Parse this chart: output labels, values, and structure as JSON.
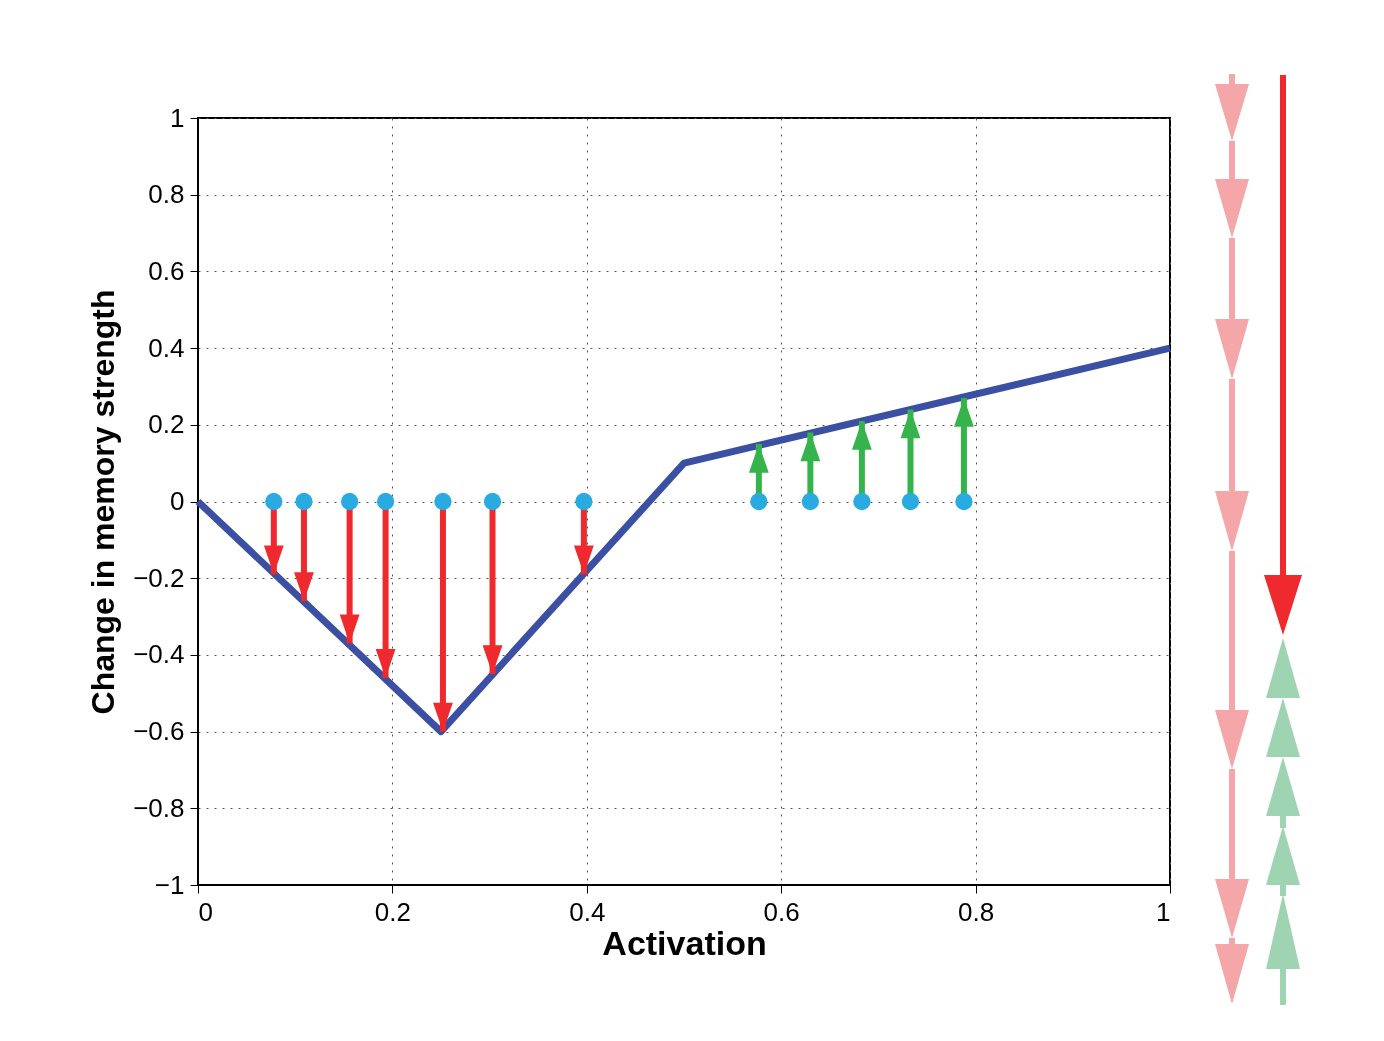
{
  "chart_data": {
    "type": "line",
    "xlabel": "Activation",
    "ylabel": "Change in memory strength",
    "xlim": [
      0,
      1
    ],
    "xticks": [
      0,
      0.2,
      0.4,
      0.6,
      0.8,
      1
    ],
    "ylim": [
      -1,
      1
    ],
    "yticks": [
      {
        "value": -1,
        "label": "−1"
      },
      {
        "value": -0.8,
        "label": "−0.8"
      },
      {
        "value": -0.6,
        "label": "−0.6"
      },
      {
        "value": -0.4,
        "label": "−0.4"
      },
      {
        "value": -0.2,
        "label": "−0.2"
      },
      0,
      0.2,
      0.4,
      0.6,
      0.8,
      1
    ],
    "grid": true,
    "series": [
      {
        "color": "#3b4fa3",
        "x": [
          0,
          0.25,
          0.5,
          1
        ],
        "values": [
          0,
          -0.6,
          0.1,
          0.4
        ],
        "line_style": "solid"
      },
      {
        "type": "scatter",
        "color": "#29abe2",
        "marker": "circle",
        "x": [
          0.078,
          0.109,
          0.156,
          0.193,
          0.252,
          0.303,
          0.397
        ],
        "values": [
          0,
          0,
          0,
          0,
          0,
          0,
          0
        ],
        "errors": [
          [
            -0.19,
            0
          ],
          [
            -0.26,
            0
          ],
          [
            -0.37,
            0
          ],
          [
            -0.46,
            0
          ],
          [
            -0.6,
            0
          ],
          [
            -0.45,
            0
          ],
          [
            -0.19,
            0
          ]
        ]
      },
      {
        "type": "scatter",
        "color": "#29abe2",
        "marker": "circle",
        "x": [
          0.577,
          0.63,
          0.683,
          0.733,
          0.788
        ],
        "values": [
          0,
          0,
          0,
          0,
          0
        ],
        "errors": [
          [
            0,
            0.15
          ],
          [
            0,
            0.18
          ],
          [
            0,
            0.21
          ],
          [
            0,
            0.24
          ],
          [
            0,
            0.27
          ]
        ]
      }
    ]
  }
}
